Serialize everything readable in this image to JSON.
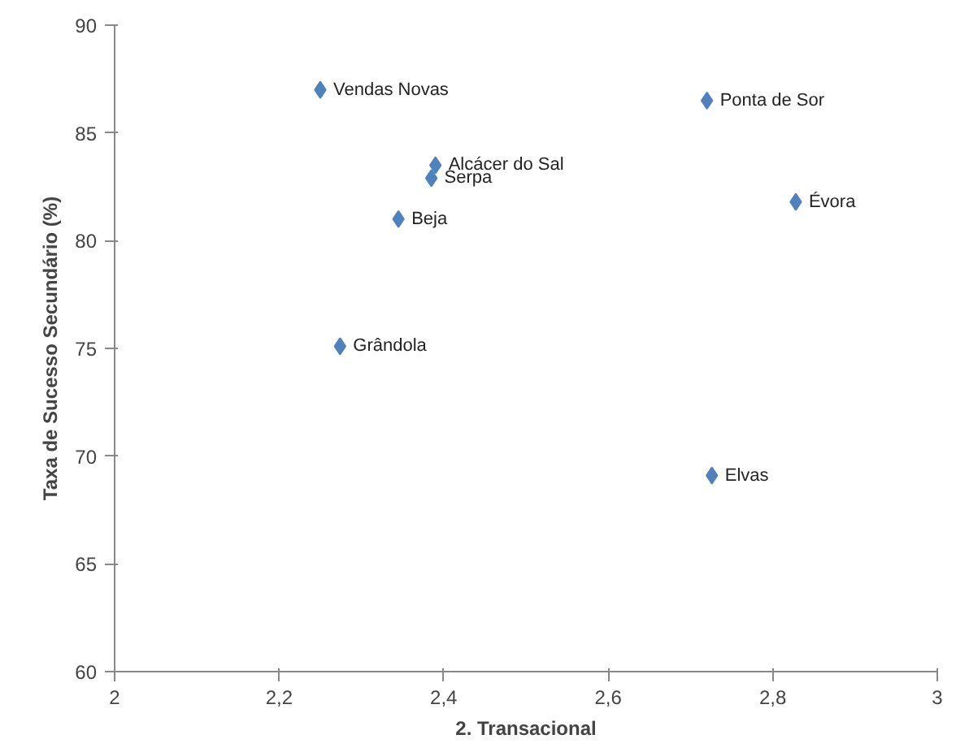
{
  "chart_data": {
    "type": "scatter",
    "xlabel": "2. Transacional",
    "ylabel": "Taxa de Sucesso Secundário (%)",
    "x": [
      2.25,
      2.72,
      2.39,
      2.385,
      2.345,
      2.828,
      2.274,
      2.726
    ],
    "series": [
      {
        "color": "#4f81bd",
        "values": [
          87.0,
          86.5,
          83.5,
          82.9,
          81.0,
          81.8,
          75.1,
          69.1
        ]
      }
    ],
    "annotations": [
      {
        "text": "Vendas Novas",
        "x": 2.25,
        "y": 87.0
      },
      {
        "text": "Ponta de Sor",
        "x": 2.72,
        "y": 86.5
      },
      {
        "text": "Alcácer do Sal",
        "x": 2.39,
        "y": 83.5
      },
      {
        "text": "Serpa",
        "x": 2.385,
        "y": 82.9
      },
      {
        "text": "Beja",
        "x": 2.345,
        "y": 81.0
      },
      {
        "text": "Évora",
        "x": 2.828,
        "y": 81.8
      },
      {
        "text": "Grândola",
        "x": 2.274,
        "y": 75.1
      },
      {
        "text": "Elvas",
        "x": 2.726,
        "y": 69.1
      }
    ],
    "xlim": [
      2,
      3
    ],
    "ylim": [
      60,
      90
    ],
    "xticks": [
      {
        "value": 2,
        "label": "2"
      },
      {
        "value": 2.2,
        "label": "2,2"
      },
      {
        "value": 2.4,
        "label": "2,4"
      },
      {
        "value": 2.6,
        "label": "2,6"
      },
      {
        "value": 2.8,
        "label": "2,8"
      },
      {
        "value": 3,
        "label": "3"
      }
    ],
    "yticks": [
      60,
      65,
      70,
      75,
      80,
      85,
      90
    ],
    "grid": false,
    "marker": "diamond"
  }
}
